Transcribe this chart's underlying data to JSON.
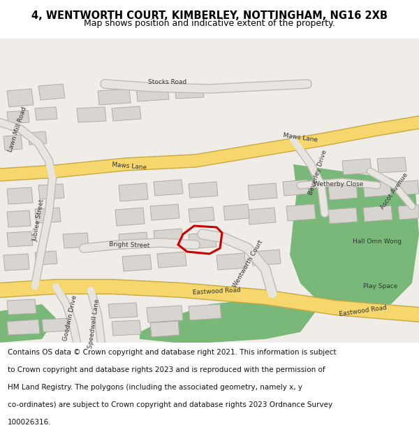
{
  "title": "4, WENTWORTH COURT, KIMBERLEY, NOTTINGHAM, NG16 2XB",
  "subtitle": "Map shows position and indicative extent of the property.",
  "footer_text": "Contains OS data © Crown copyright and database right 2021. This information is subject to Crown copyright and database rights 2023 and is reproduced with the permission of HM Land Registry. The polygons (including the associated geometry, namely x, y co-ordinates) are subject to Crown copyright and database rights 2023 Ordnance Survey 100026316.",
  "title_fontsize": 10.5,
  "subtitle_fontsize": 9,
  "footer_fontsize": 7.5,
  "bg_color": "#f0ede8",
  "map_bg": "#f5f2ee",
  "road_yellow": "#f5d76e",
  "road_outline": "#d4b84a",
  "building_color": "#d8d5d0",
  "building_edge": "#b0aca6",
  "green_area": "#7ab87a",
  "plot_outline": "#cc0000",
  "plot_linewidth": 2.2,
  "header_bg": "#ffffff",
  "footer_bg": "#ffffff"
}
